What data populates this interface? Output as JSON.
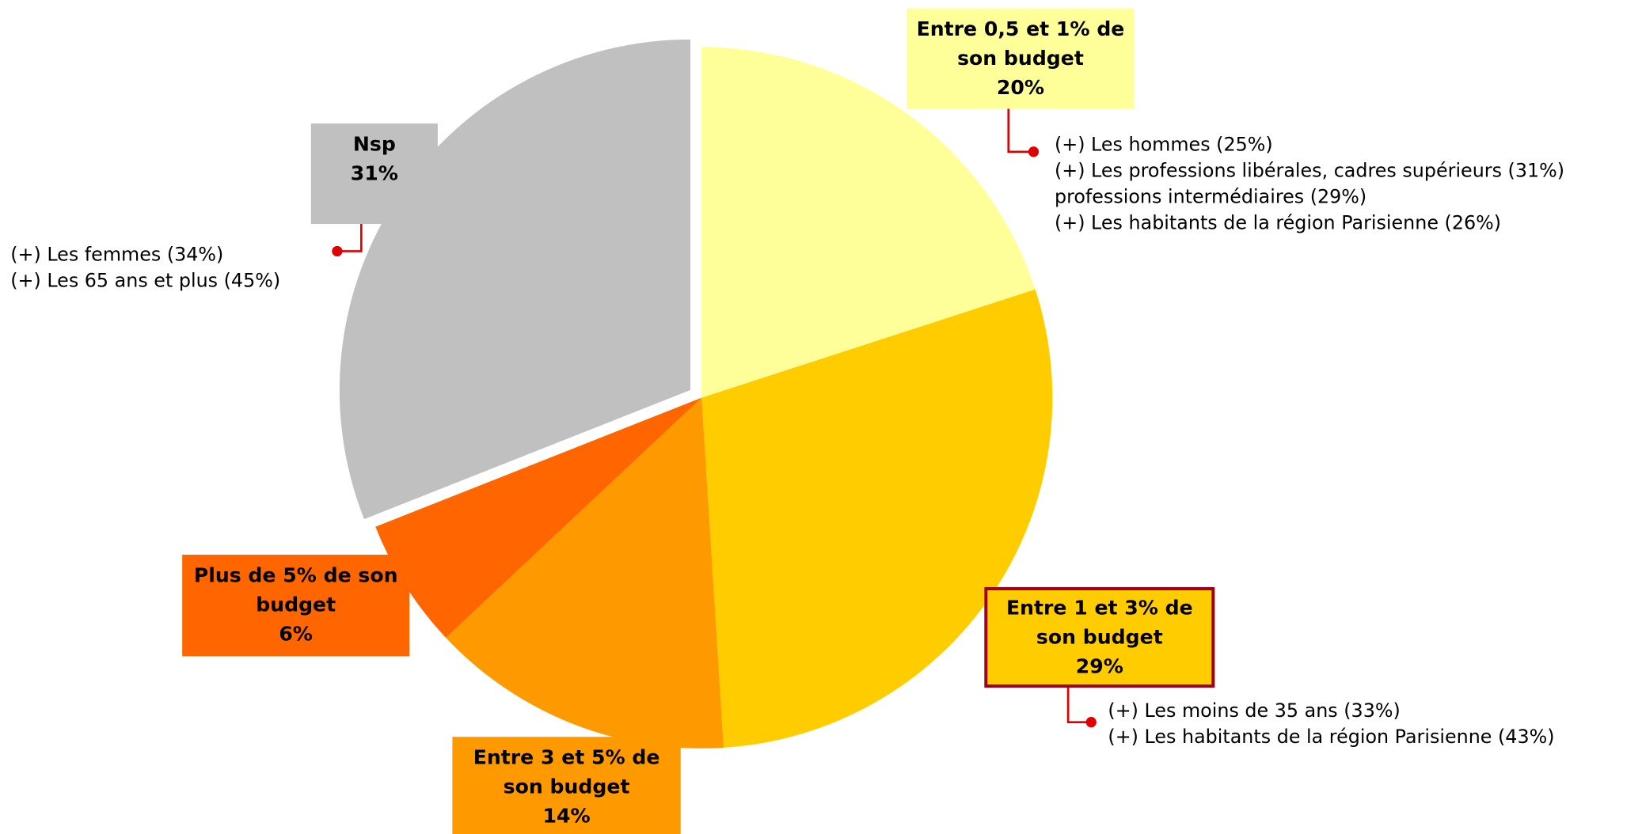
{
  "chart_data": {
    "type": "pie",
    "categories": [
      "Entre 0,5 et 1% de son budget",
      "Entre 1 et 3% de son budget",
      "Entre 3 et 5% de son budget",
      "Plus de 5% de son budget",
      "Nsp"
    ],
    "values": [
      20,
      29,
      14,
      6,
      31
    ],
    "value_labels": [
      "20%",
      "29%",
      "14%",
      "6%",
      "31%"
    ],
    "colors": [
      "#FFFF99",
      "#FFCC00",
      "#FF9900",
      "#FF6600",
      "#C0C0C0"
    ],
    "exploded": [
      false,
      false,
      false,
      false,
      true
    ],
    "notes": [
      [
        "(+) Les hommes (25%)",
        "(+) Les professions libérales, cadres supérieurs (31%)",
        "professions intermédiaires (29%)",
        "(+) Les habitants de la région Parisienne (26%)"
      ],
      [
        "(+) Les moins de 35 ans (33%)",
        "(+) Les habitants de la région Parisienne (43%)"
      ],
      [],
      [],
      [
        "(+) Les femmes (34%)",
        "(+) Les 65 ans et plus (45%)"
      ]
    ]
  }
}
